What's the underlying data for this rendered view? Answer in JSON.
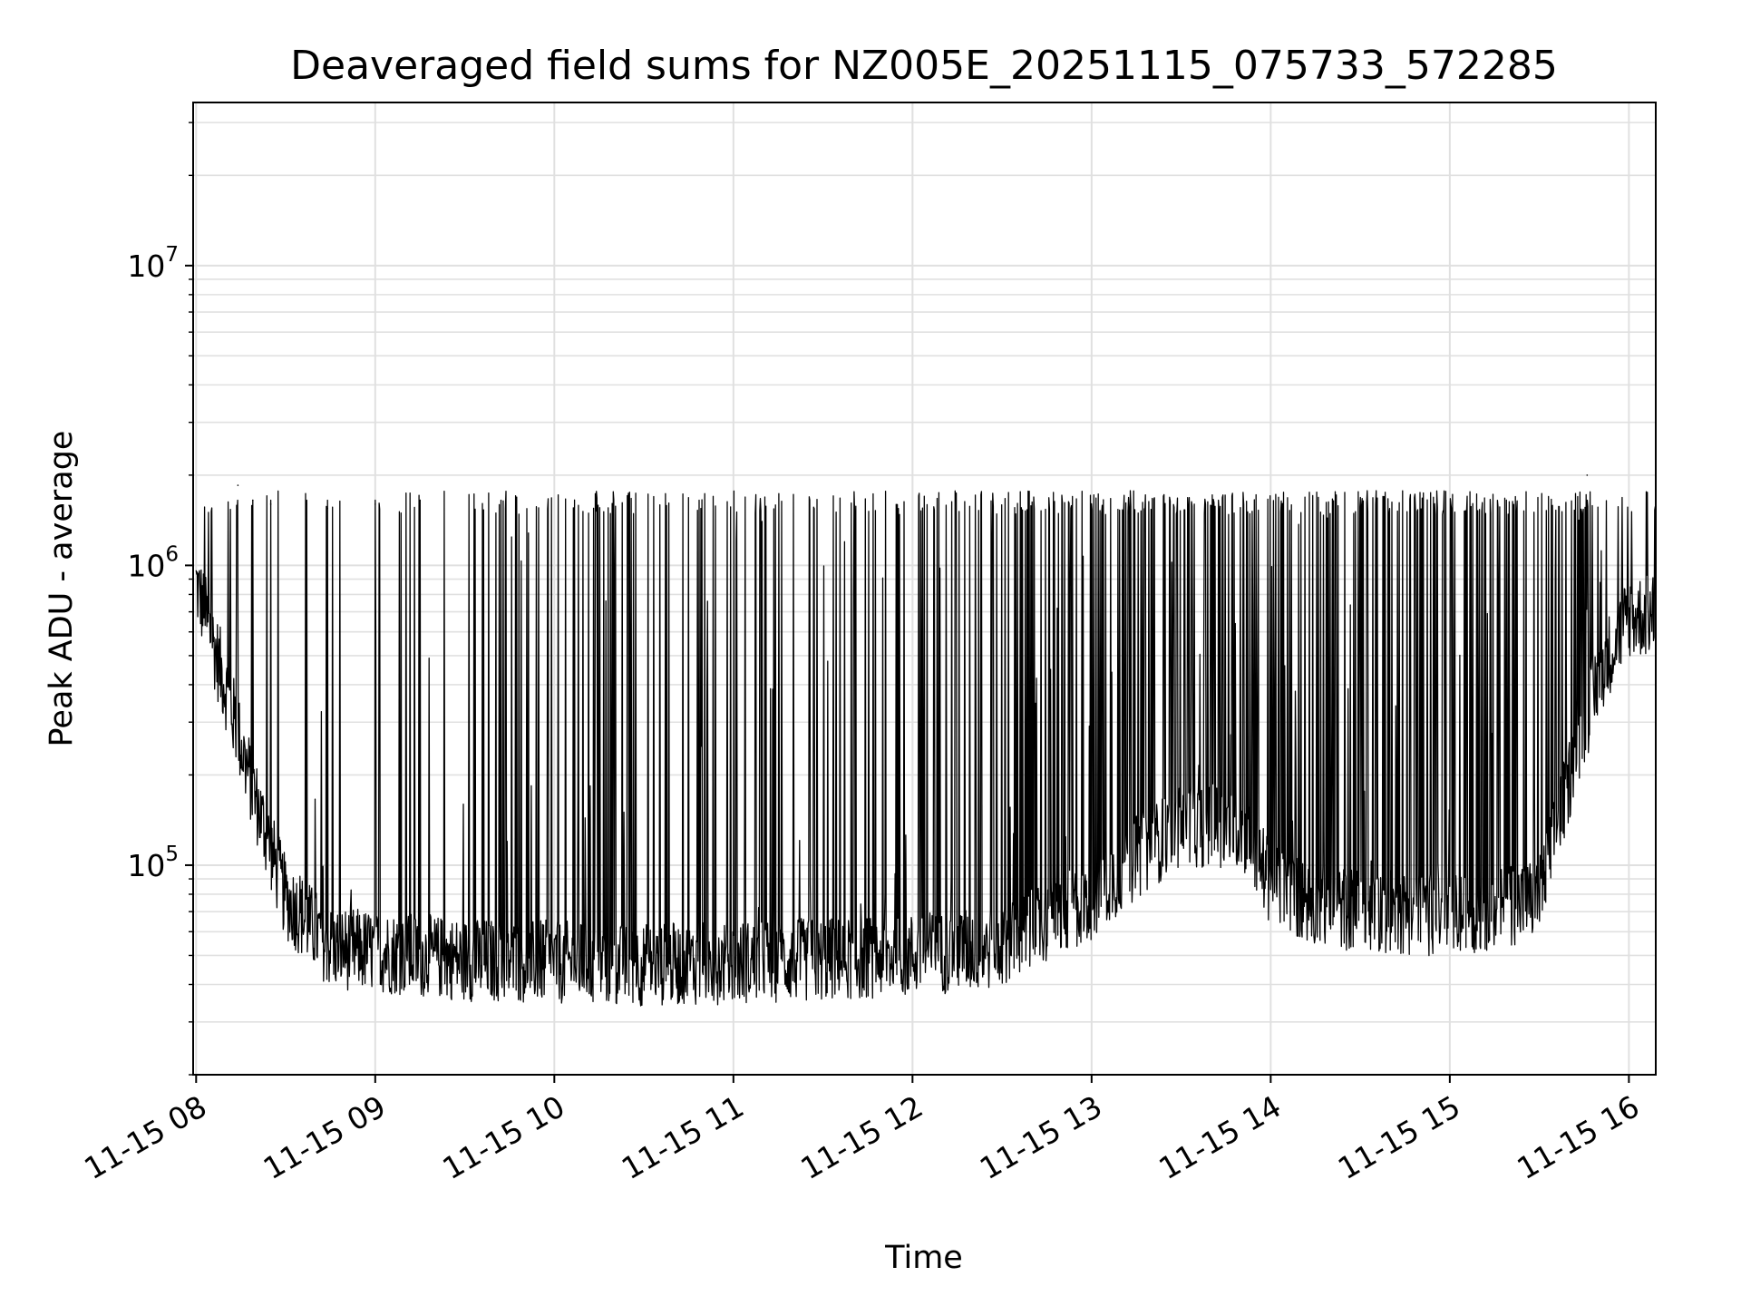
{
  "chart_data": {
    "type": "line",
    "title": "Deaveraged field sums for NZ005E_20251115_075733_572285",
    "xlabel": "Time",
    "ylabel": "Peak ADU - average",
    "y_scale": "log",
    "x_range": [
      "2025-11-15 07:59",
      "2025-11-15 16:09"
    ],
    "y_range": [
      20000,
      35000000
    ],
    "grid": true,
    "line_color": "#000000",
    "grid_color": "#e0e0e0",
    "x_ticks": [
      {
        "time": "2025-11-15 08:00",
        "label": "11-15 08"
      },
      {
        "time": "2025-11-15 09:00",
        "label": "11-15 09"
      },
      {
        "time": "2025-11-15 10:00",
        "label": "11-15 10"
      },
      {
        "time": "2025-11-15 11:00",
        "label": "11-15 11"
      },
      {
        "time": "2025-11-15 12:00",
        "label": "11-15 12"
      },
      {
        "time": "2025-11-15 13:00",
        "label": "11-15 13"
      },
      {
        "time": "2025-11-15 14:00",
        "label": "11-15 14"
      },
      {
        "time": "2025-11-15 15:00",
        "label": "11-15 15"
      },
      {
        "time": "2025-11-15 16:00",
        "label": "11-15 16"
      }
    ],
    "y_ticks": [
      {
        "value": 100000,
        "base": "10",
        "exp": "5"
      },
      {
        "value": 1000000,
        "base": "10",
        "exp": "6"
      },
      {
        "value": 10000000,
        "base": "10",
        "exp": "7"
      }
    ],
    "series": [
      {
        "baseline_envelope": [
          {
            "time": "2025-11-15 08:00",
            "value": 900000
          },
          {
            "time": "2025-11-15 08:10",
            "value": 400000
          },
          {
            "time": "2025-11-15 08:20",
            "value": 170000
          },
          {
            "time": "2025-11-15 08:30",
            "value": 80000
          },
          {
            "time": "2025-11-15 08:45",
            "value": 55000
          },
          {
            "time": "2025-11-15 09:30",
            "value": 50000
          },
          {
            "time": "2025-11-15 10:30",
            "value": 48000
          },
          {
            "time": "2025-11-15 11:30",
            "value": 50000
          },
          {
            "time": "2025-11-15 12:00",
            "value": 52000
          },
          {
            "time": "2025-11-15 12:30",
            "value": 55000
          },
          {
            "time": "2025-11-15 13:00",
            "value": 80000
          },
          {
            "time": "2025-11-15 13:15",
            "value": 110000
          },
          {
            "time": "2025-11-15 13:30",
            "value": 140000
          },
          {
            "time": "2025-11-15 13:50",
            "value": 140000
          },
          {
            "time": "2025-11-15 14:00",
            "value": 90000
          },
          {
            "time": "2025-11-15 14:15",
            "value": 75000
          },
          {
            "time": "2025-11-15 15:00",
            "value": 70000
          },
          {
            "time": "2025-11-15 15:30",
            "value": 80000
          },
          {
            "time": "2025-11-15 15:40",
            "value": 200000
          },
          {
            "time": "2025-11-15 15:50",
            "value": 450000
          },
          {
            "time": "2025-11-15 16:00",
            "value": 700000
          },
          {
            "time": "2025-11-15 16:09",
            "value": 700000
          }
        ],
        "peak_level": 1650000,
        "peak_max": 2000000,
        "min_value": 29000,
        "peaks": [
          {
            "time": "2025-11-15 08:14",
            "value": 1850000
          },
          {
            "time": "2025-11-15 08:19",
            "value": 1650000
          },
          {
            "time": "2025-11-15 08:25",
            "value": 1600000
          },
          {
            "time": "2025-11-15 08:37",
            "value": 1600000
          },
          {
            "time": "2025-11-15 08:44",
            "value": 1550000
          },
          {
            "time": "2025-11-15 09:00",
            "value": 1600000
          },
          {
            "time": "2025-11-15 09:15",
            "value": 1650000
          },
          {
            "time": "2025-11-15 15:46",
            "value": 2000000
          }
        ]
      }
    ]
  }
}
